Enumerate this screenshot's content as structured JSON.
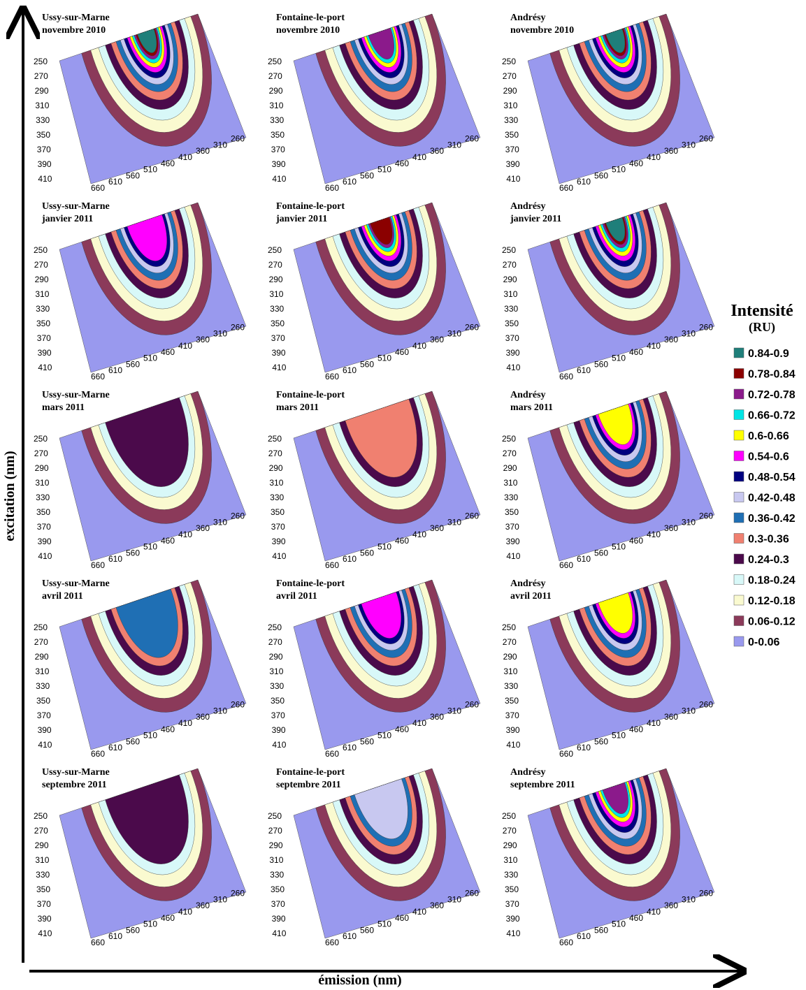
{
  "panels": [
    {
      "site": "Ussy-sur-Marne",
      "date": "novembre 2010"
    },
    {
      "site": "Fontaine-le-port",
      "date": "novembre 2010"
    },
    {
      "site": "Andrésy",
      "date": "novembre 2010"
    },
    {
      "site": "Ussy-sur-Marne",
      "date": "janvier 2011"
    },
    {
      "site": "Fontaine-le-port",
      "date": "janvier 2011"
    },
    {
      "site": "Andrésy",
      "date": "janvier 2011"
    },
    {
      "site": "Ussy-sur-Marne",
      "date": "mars 2011"
    },
    {
      "site": "Fontaine-le-port",
      "date": "mars 2011"
    },
    {
      "site": "Andrésy",
      "date": "mars 2011"
    },
    {
      "site": "Ussy-sur-Marne",
      "date": "avril 2011"
    },
    {
      "site": "Fontaine-le-port",
      "date": "avril 2011"
    },
    {
      "site": "Andrésy",
      "date": "avril 2011"
    },
    {
      "site": "Ussy-sur-Marne",
      "date": "septembre 2011"
    },
    {
      "site": "Fontaine-le-port",
      "date": "septembre 2011"
    },
    {
      "site": "Andrésy",
      "date": "septembre 2011"
    }
  ],
  "excitation_ticks": [
    250,
    270,
    290,
    310,
    330,
    350,
    370,
    390,
    410
  ],
  "emission_ticks": [
    660,
    610,
    560,
    510,
    460,
    410,
    360,
    310,
    260
  ],
  "axes": {
    "y_label": "excitation (nm)",
    "x_label": "émission (nm)"
  },
  "legend": {
    "title": "Intensité",
    "unit": "(RU)",
    "items": [
      {
        "label": "0.84-0.9",
        "color": "#1f7f7a"
      },
      {
        "label": "0.78-0.84",
        "color": "#8b0000"
      },
      {
        "label": "0.72-0.78",
        "color": "#8b1a8b"
      },
      {
        "label": "0.66-0.72",
        "color": "#00e5e5"
      },
      {
        "label": "0.6-0.66",
        "color": "#ffff00"
      },
      {
        "label": "0.54-0.6",
        "color": "#ff00ff"
      },
      {
        "label": "0.48-0.54",
        "color": "#000080"
      },
      {
        "label": "0.42-0.48",
        "color": "#c8c8f0"
      },
      {
        "label": "0.36-0.42",
        "color": "#1f6fb4"
      },
      {
        "label": "0.3-0.36",
        "color": "#f08070"
      },
      {
        "label": "0.24-0.3",
        "color": "#4b0a4b"
      },
      {
        "label": "0.18-0.24",
        "color": "#d8f8f8"
      },
      {
        "label": "0.12-0.18",
        "color": "#fafad0"
      },
      {
        "label": "0.06-0.12",
        "color": "#8b3a5a"
      },
      {
        "label": "0-0.06",
        "color": "#9999ee"
      }
    ]
  }
}
